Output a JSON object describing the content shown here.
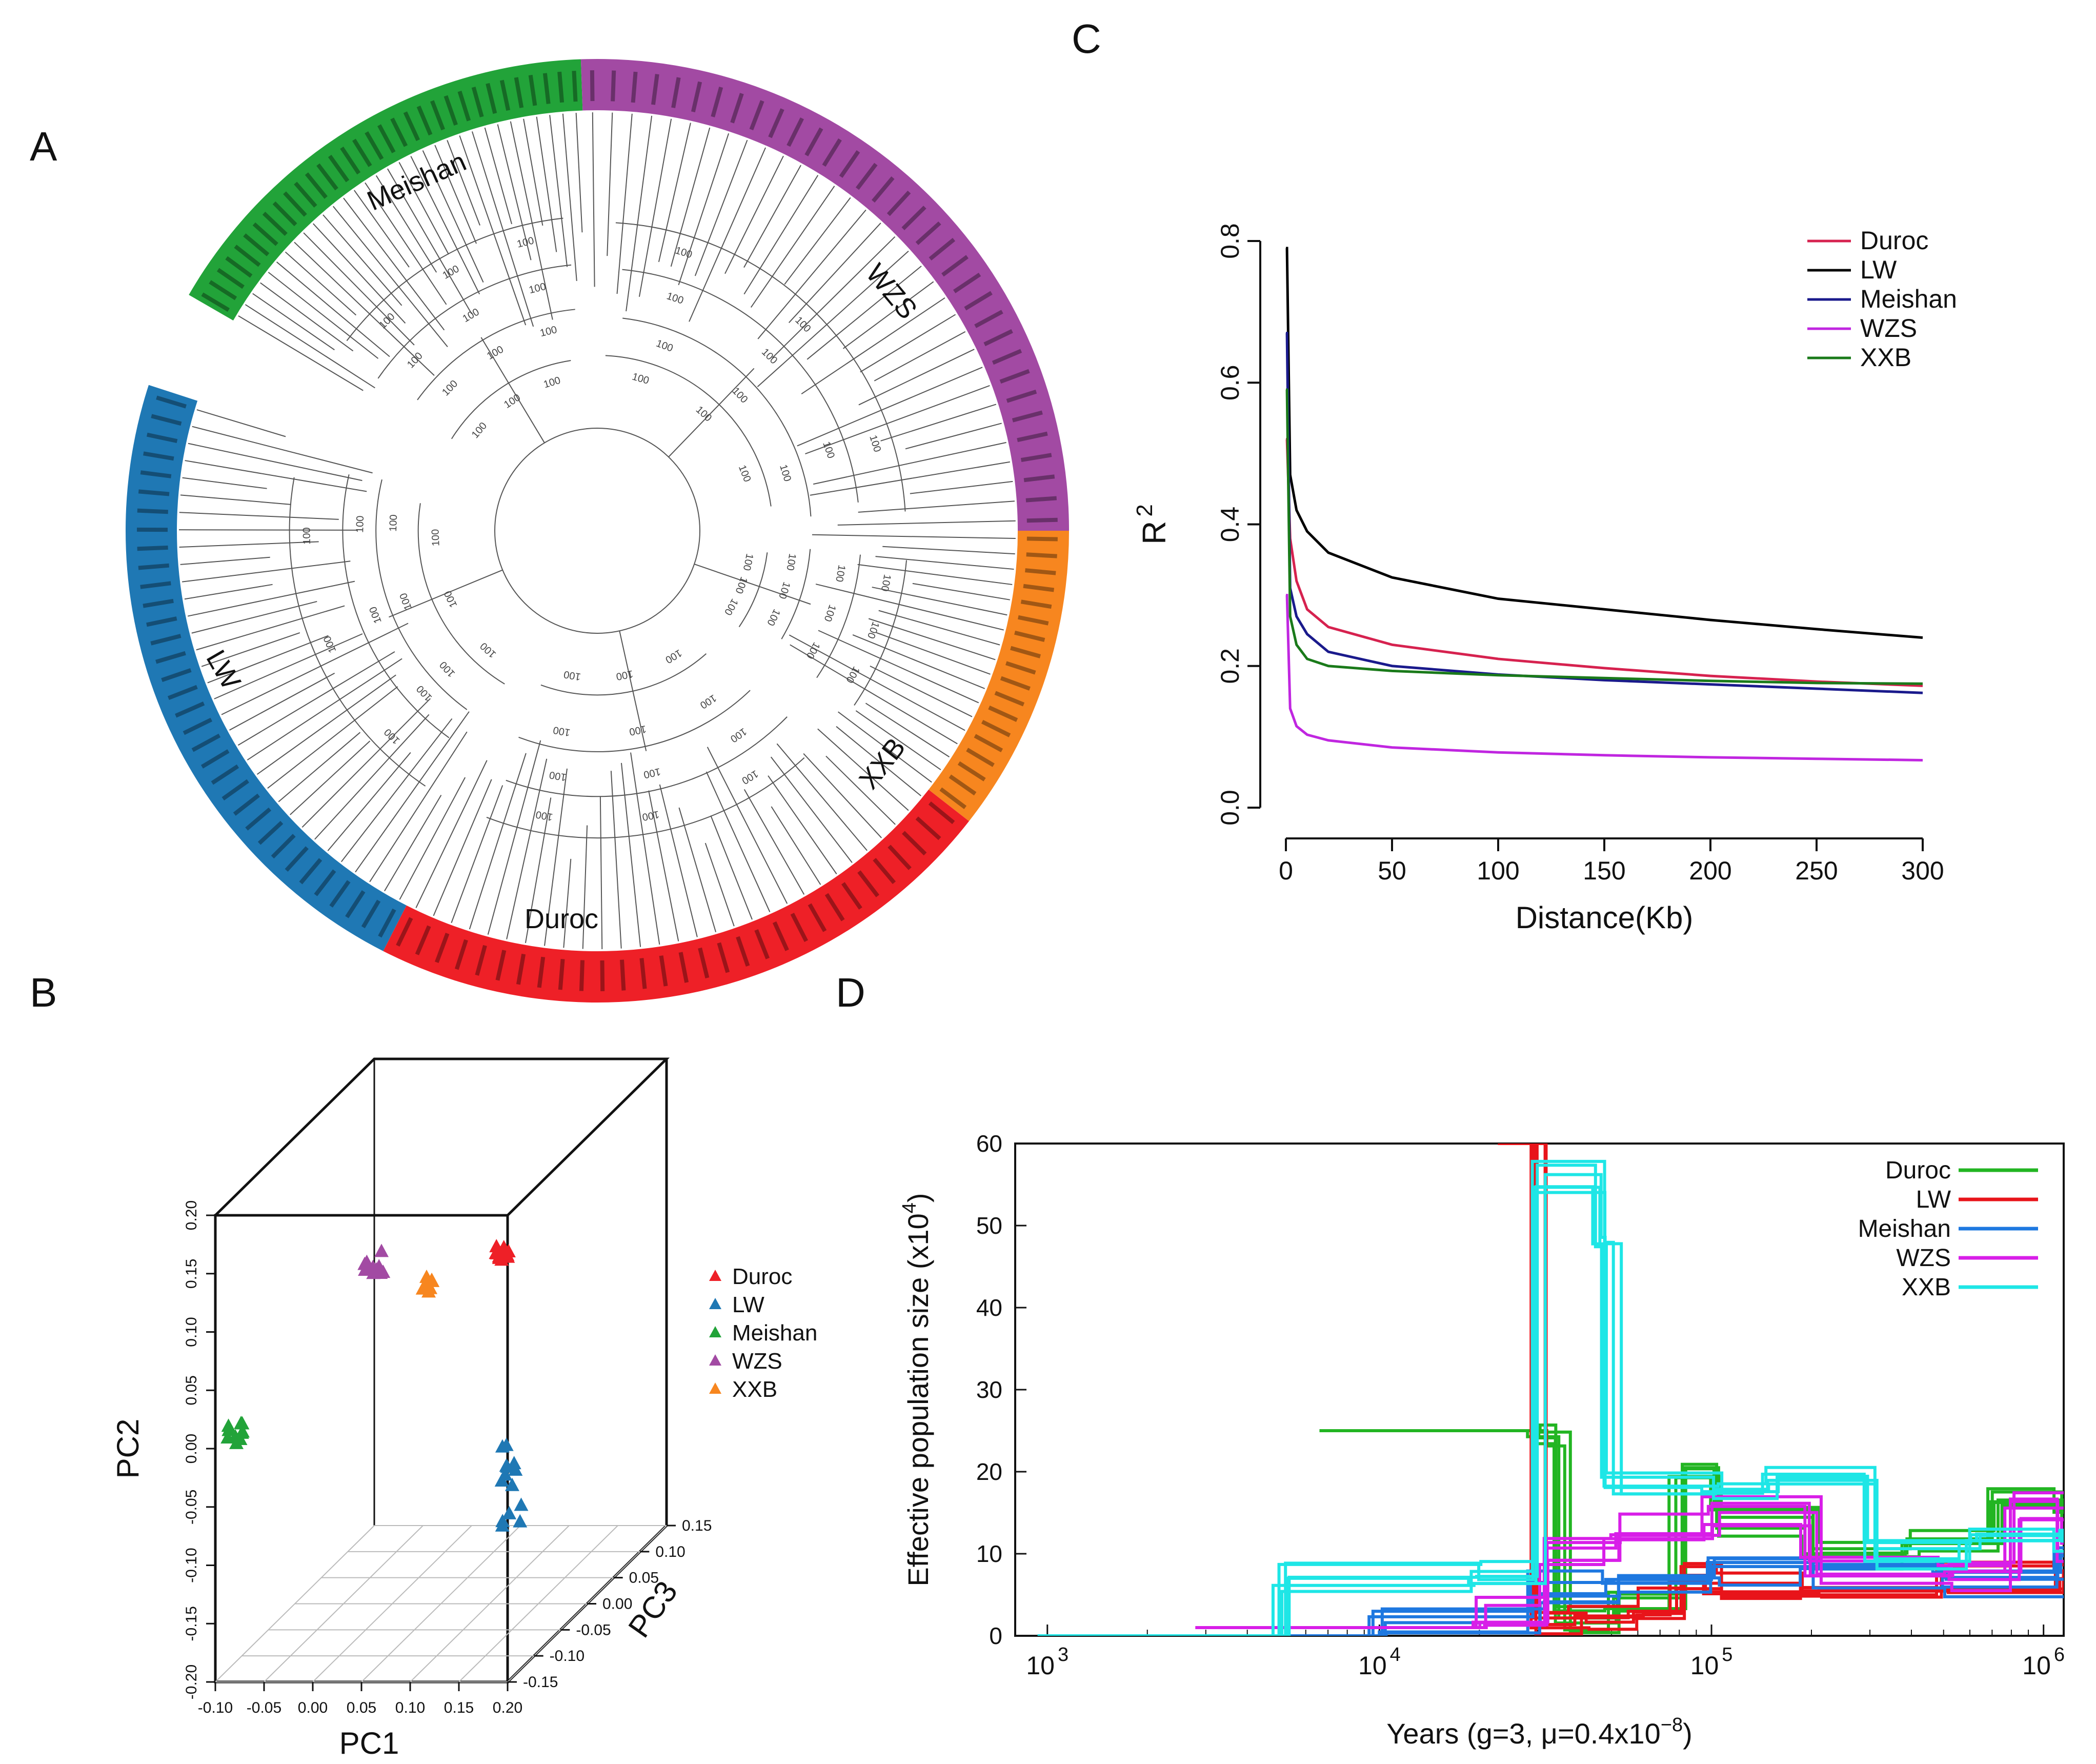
{
  "panels": {
    "a": {
      "letter": "A"
    },
    "b": {
      "letter": "B"
    },
    "c": {
      "letter": "C"
    },
    "d": {
      "letter": "D"
    }
  },
  "chart_data": [
    {
      "id": "A",
      "type": "tree",
      "title": "",
      "groups": [
        {
          "name": "Meishan",
          "color": "#22a339",
          "leaves": 32
        },
        {
          "name": "WZS",
          "color": "#a24aa3",
          "leaves": 34
        },
        {
          "name": "XXB",
          "color": "#f7861f",
          "leaves": 18
        },
        {
          "name": "Duroc",
          "color": "#ee2027",
          "leaves": 30
        },
        {
          "name": "LW",
          "color": "#1f78b4",
          "leaves": 34
        }
      ],
      "bootstrap_label": "100"
    },
    {
      "id": "B",
      "type": "scatter3d",
      "xlabel": "PC1",
      "ylabel": "PC2",
      "zlabel": "PC3",
      "xticks": [
        "-0.10",
        "-0.05",
        "0.00",
        "0.05",
        "0.10",
        "0.15",
        "0.20"
      ],
      "yticks": [
        "-0.20",
        "-0.15",
        "-0.10",
        "-0.05",
        "0.00",
        "0.05",
        "0.10",
        "0.15",
        "0.20"
      ],
      "zticks": [
        "-0.15",
        "-0.10",
        "-0.05",
        "0.00",
        "0.05",
        "0.10",
        "0.15"
      ],
      "xlim": [
        -0.1,
        0.2
      ],
      "ylim": [
        -0.2,
        0.2
      ],
      "zlim": [
        -0.15,
        0.15
      ],
      "legend": [
        {
          "name": "Duroc",
          "color": "#ee2027"
        },
        {
          "name": "LW",
          "color": "#1f78b4"
        },
        {
          "name": "Meishan",
          "color": "#22a339"
        },
        {
          "name": "WZS",
          "color": "#a24aa3"
        },
        {
          "name": "XXB",
          "color": "#f7861f"
        }
      ],
      "clusters": [
        {
          "name": "Meishan",
          "pc1": -0.09,
          "pc2": 0.01,
          "pc3": -0.1,
          "n": 10,
          "spread": 0.012
        },
        {
          "name": "WZS",
          "pc1": 0.04,
          "pc2": 0.14,
          "pc3": 0.02,
          "n": 10,
          "spread": 0.01
        },
        {
          "name": "XXB",
          "pc1": 0.09,
          "pc2": 0.12,
          "pc3": 0.02,
          "n": 8,
          "spread": 0.01
        },
        {
          "name": "Duroc",
          "pc1": 0.16,
          "pc2": 0.14,
          "pc3": 0.08,
          "n": 12,
          "spread": 0.01
        },
        {
          "name": "LW",
          "pc1": 0.17,
          "pc2": -0.06,
          "pc3": 0.1,
          "n": 14,
          "spread": 0.01
        }
      ]
    },
    {
      "id": "C",
      "type": "line",
      "xlabel": "Distance(Kb)",
      "ylabel": "R",
      "ylabel_sup": "2",
      "xlim": [
        0,
        300
      ],
      "ylim": [
        0,
        0.8
      ],
      "xticks": [
        0,
        50,
        100,
        150,
        200,
        250,
        300
      ],
      "yticks": [
        "0.0",
        "0.2",
        "0.4",
        "0.6",
        "0.8"
      ],
      "series": [
        {
          "name": "Duroc",
          "color": "#d6224f",
          "x": [
            0.5,
            2,
            5,
            10,
            20,
            50,
            100,
            150,
            200,
            250,
            300
          ],
          "y": [
            0.52,
            0.38,
            0.32,
            0.28,
            0.255,
            0.23,
            0.21,
            0.197,
            0.186,
            0.178,
            0.172
          ]
        },
        {
          "name": "LW",
          "color": "#000000",
          "x": [
            0.5,
            2,
            5,
            10,
            20,
            50,
            100,
            150,
            200,
            250,
            300
          ],
          "y": [
            0.79,
            0.47,
            0.42,
            0.39,
            0.36,
            0.325,
            0.295,
            0.28,
            0.265,
            0.252,
            0.24
          ]
        },
        {
          "name": "Meishan",
          "color": "#1a1a8c",
          "x": [
            0.5,
            2,
            5,
            10,
            20,
            50,
            100,
            150,
            200,
            250,
            300
          ],
          "y": [
            0.67,
            0.31,
            0.27,
            0.245,
            0.22,
            0.2,
            0.188,
            0.18,
            0.174,
            0.168,
            0.162
          ]
        },
        {
          "name": "WZS",
          "color": "#c026e0",
          "x": [
            0.5,
            2,
            5,
            10,
            20,
            50,
            100,
            150,
            200,
            250,
            300
          ],
          "y": [
            0.3,
            0.14,
            0.115,
            0.103,
            0.095,
            0.085,
            0.078,
            0.074,
            0.071,
            0.069,
            0.067
          ]
        },
        {
          "name": "XXB",
          "color": "#1a7a1a",
          "x": [
            0.5,
            2,
            5,
            10,
            20,
            50,
            100,
            150,
            200,
            250,
            300
          ],
          "y": [
            0.59,
            0.27,
            0.23,
            0.21,
            0.2,
            0.193,
            0.187,
            0.183,
            0.179,
            0.176,
            0.175
          ]
        }
      ]
    },
    {
      "id": "D",
      "type": "line",
      "scale": "log-x step",
      "xlabel": "Years (g=3, μ=0.4x10",
      "xlabel_sup": "−8",
      "xlabel_tail": ")",
      "ylabel": "Effective population size (x10",
      "ylabel_sup": "4",
      "ylabel_tail": ")",
      "xlim": [
        800,
        1150000
      ],
      "ylim": [
        0,
        60
      ],
      "xticks": [
        {
          "base": "10",
          "exp": "3"
        },
        {
          "base": "10",
          "exp": "4"
        },
        {
          "base": "10",
          "exp": "5"
        },
        {
          "base": "10",
          "exp": "6"
        }
      ],
      "yticks": [
        "0",
        "10",
        "20",
        "30",
        "40",
        "50",
        "60"
      ],
      "series": [
        {
          "name": "Duroc",
          "color": "#22b522",
          "x": [
            7000,
            30000,
            35000,
            50000,
            80000,
            100000,
            200000,
            400000,
            700000,
            1150000
          ],
          "y": [
            25,
            25,
            2,
            4,
            21,
            14,
            10,
            12,
            16,
            14
          ]
        },
        {
          "name": "LW",
          "color": "#e8141a",
          "x": [
            24000,
            30000,
            40000,
            60000,
            80000,
            100000,
            200000,
            500000,
            1150000
          ],
          "y": [
            60,
            1,
            2,
            4,
            7,
            6,
            6,
            7,
            8
          ]
        },
        {
          "name": "Meishan",
          "color": "#1e78e0",
          "x": [
            1000,
            10000,
            30000,
            50000,
            100000,
            200000,
            500000,
            1150000
          ],
          "y": [
            0,
            2,
            6,
            7,
            8,
            7,
            6,
            10
          ]
        },
        {
          "name": "WZS",
          "color": "#d81ee8",
          "x": [
            3000,
            20000,
            30000,
            50000,
            100000,
            200000,
            500000,
            800000,
            1150000
          ],
          "y": [
            1,
            3,
            10,
            13,
            15,
            8,
            7,
            16,
            10
          ]
        },
        {
          "name": "XXB",
          "color": "#1ee6e6",
          "x": [
            1000,
            5000,
            20000,
            30000,
            45000,
            50000,
            100000,
            150000,
            300000,
            600000,
            1150000
          ],
          "y": [
            0,
            7,
            8,
            56,
            48,
            18,
            17,
            19,
            10,
            13,
            11
          ]
        }
      ]
    }
  ]
}
